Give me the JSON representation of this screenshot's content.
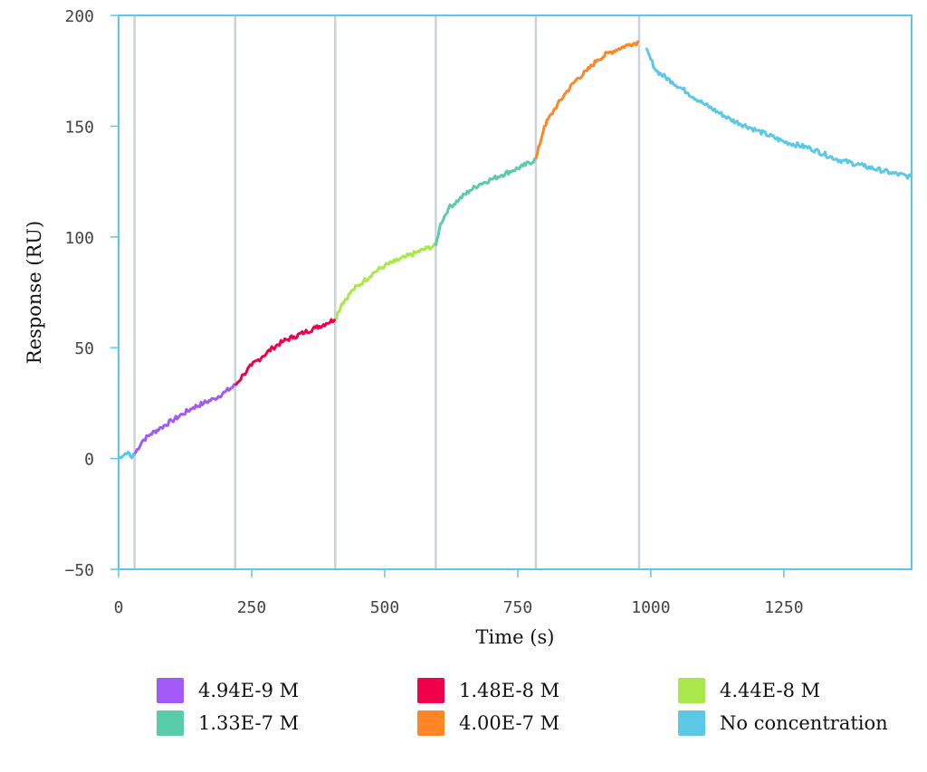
{
  "chart_data": {
    "type": "line",
    "title": "",
    "xlabel": "Time (s)",
    "ylabel": "Response (RU)",
    "xlim": [
      0,
      1490
    ],
    "ylim": [
      -50,
      200
    ],
    "x_ticks": [
      0,
      250,
      500,
      750,
      1000,
      1250
    ],
    "y_ticks": [
      -50,
      0,
      50,
      100,
      150,
      200
    ],
    "grid": false,
    "legend_position": "bottom",
    "frame_color": "#5bc8e6",
    "injection_lines": [
      30,
      219,
      407,
      596,
      784,
      978
    ],
    "series": [
      {
        "name": "4.94E-9 M",
        "color": "#a259f7",
        "x": [
          30,
          45,
          60,
          80,
          100,
          120,
          140,
          160,
          180,
          200,
          219
        ],
        "y": [
          2,
          8,
          11,
          14,
          17,
          20,
          23,
          25,
          27,
          30,
          33
        ]
      },
      {
        "name": "1.48E-8 M",
        "color": "#f0004a",
        "x": [
          219,
          235,
          250,
          270,
          290,
          310,
          330,
          350,
          370,
          390,
          407
        ],
        "y": [
          33,
          38,
          42,
          46,
          50,
          53,
          55,
          57,
          59,
          61,
          63
        ]
      },
      {
        "name": "4.44E-8 M",
        "color": "#a8e84a",
        "x": [
          407,
          420,
          440,
          460,
          480,
          500,
          520,
          540,
          560,
          580,
          596
        ],
        "y": [
          63,
          70,
          76,
          80,
          84,
          87,
          89,
          91,
          93,
          95,
          96
        ]
      },
      {
        "name": "1.33E-7 M",
        "color": "#58cda8",
        "x": [
          596,
          605,
          620,
          640,
          660,
          680,
          700,
          720,
          740,
          760,
          784
        ],
        "y": [
          96,
          106,
          113,
          117,
          121,
          124,
          126,
          128,
          130,
          132,
          135
        ]
      },
      {
        "name": "4.00E-7 M",
        "color": "#ff8525",
        "x": [
          784,
          800,
          820,
          840,
          860,
          880,
          900,
          920,
          940,
          960,
          978
        ],
        "y": [
          135,
          150,
          158,
          165,
          171,
          175,
          180,
          183,
          185,
          187,
          188
        ]
      },
      {
        "name": "No concentration",
        "color": "#5bc8e6",
        "x": [
          0,
          15,
          30,
          978,
          990,
          1010,
          1040,
          1070,
          1100,
          1150,
          1200,
          1250,
          1300,
          1350,
          1400,
          1450,
          1490
        ],
        "y": [
          1,
          2,
          1,
          null,
          185,
          175,
          170,
          165,
          160,
          153,
          148,
          143,
          140,
          135,
          132,
          129,
          127
        ]
      }
    ]
  },
  "legend": {
    "items": [
      {
        "label": "4.94E-9 M",
        "color": "#a259f7"
      },
      {
        "label": "1.48E-8 M",
        "color": "#f0004a"
      },
      {
        "label": "4.44E-8 M",
        "color": "#a8e84a"
      },
      {
        "label": "1.33E-7 M",
        "color": "#58cda8"
      },
      {
        "label": "4.00E-7 M",
        "color": "#ff8525"
      },
      {
        "label": "No concentration",
        "color": "#5bc8e6"
      }
    ]
  }
}
